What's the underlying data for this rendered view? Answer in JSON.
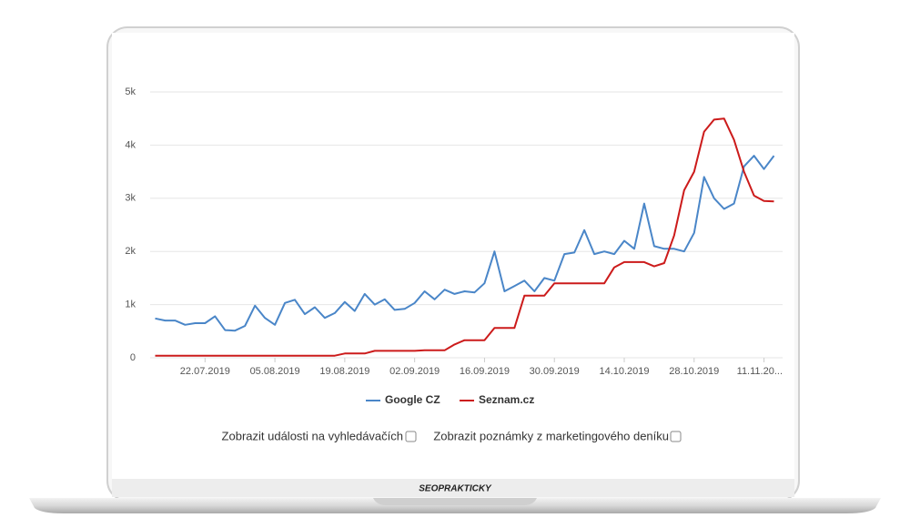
{
  "chart_data": {
    "type": "line",
    "x": [
      "12.07.2019",
      "14.07.2019",
      "16.07.2019",
      "18.07.2019",
      "20.07.2019",
      "22.07.2019",
      "24.07.2019",
      "26.07.2019",
      "28.07.2019",
      "30.07.2019",
      "01.08.2019",
      "03.08.2019",
      "05.08.2019",
      "07.08.2019",
      "09.08.2019",
      "11.08.2019",
      "13.08.2019",
      "15.08.2019",
      "17.08.2019",
      "19.08.2019",
      "21.08.2019",
      "23.08.2019",
      "25.08.2019",
      "27.08.2019",
      "29.08.2019",
      "31.08.2019",
      "02.09.2019",
      "04.09.2019",
      "06.09.2019",
      "08.09.2019",
      "10.09.2019",
      "12.09.2019",
      "14.09.2019",
      "16.09.2019",
      "18.09.2019",
      "20.09.2019",
      "22.09.2019",
      "24.09.2019",
      "26.09.2019",
      "28.09.2019",
      "30.09.2019",
      "02.10.2019",
      "04.10.2019",
      "06.10.2019",
      "08.10.2019",
      "10.10.2019",
      "12.10.2019",
      "14.10.2019",
      "16.10.2019",
      "18.10.2019",
      "20.10.2019",
      "22.10.2019",
      "24.10.2019",
      "26.10.2019",
      "28.10.2019",
      "30.10.2019",
      "01.11.2019",
      "03.11.2019",
      "05.11.2019",
      "07.11.2019",
      "09.11.2019",
      "11.11.2019",
      "13.11.2019"
    ],
    "series": [
      {
        "name": "Google CZ",
        "color": "#4a86c8",
        "values": [
          740,
          700,
          700,
          620,
          650,
          650,
          780,
          520,
          510,
          600,
          980,
          750,
          620,
          1030,
          1090,
          820,
          950,
          750,
          840,
          1050,
          880,
          1200,
          1000,
          1100,
          900,
          920,
          1030,
          1250,
          1100,
          1280,
          1200,
          1250,
          1230,
          1400,
          2000,
          1250,
          1350,
          1450,
          1250,
          1500,
          1450,
          1950,
          1980,
          2400,
          1950,
          2000,
          1950,
          2200,
          2050,
          2900,
          2100,
          2050,
          2050,
          2000,
          2350,
          3400,
          3000,
          2800,
          2900,
          3600,
          3800,
          3550,
          3800
        ]
      },
      {
        "name": "Seznam.cz",
        "color": "#cc1b1b",
        "values": [
          40,
          40,
          40,
          40,
          40,
          40,
          40,
          40,
          40,
          40,
          40,
          40,
          40,
          40,
          40,
          40,
          40,
          40,
          40,
          80,
          80,
          80,
          130,
          130,
          130,
          130,
          130,
          140,
          140,
          140,
          250,
          330,
          330,
          330,
          560,
          560,
          560,
          1170,
          1170,
          1170,
          1400,
          1400,
          1400,
          1400,
          1400,
          1400,
          1700,
          1800,
          1800,
          1800,
          1720,
          1780,
          2300,
          3150,
          3500,
          4250,
          4480,
          4500,
          4100,
          3500,
          3050,
          2950,
          2940
        ]
      }
    ],
    "xlim": [
      "11.07.2019",
      "14.11.2019"
    ],
    "xticks": [
      "22.07.2019",
      "05.08.2019",
      "19.08.2019",
      "02.09.2019",
      "16.09.2019",
      "30.09.2019",
      "14.10.2019",
      "28.10.2019",
      {
        "value": "11.11.2019",
        "label": "11.11.20..."
      }
    ],
    "ylim": [
      0,
      5000
    ],
    "yticks": [
      0,
      {
        "value": 1000,
        "label": "1k"
      },
      {
        "value": 2000,
        "label": "2k"
      },
      {
        "value": 3000,
        "label": "3k"
      },
      {
        "value": 4000,
        "label": "4k"
      },
      {
        "value": 5000,
        "label": "5k"
      }
    ],
    "grid": true,
    "legend": "bottom"
  },
  "controls": [
    "Zobrazit události na vyhledávačích",
    "Zobrazit poznámky z marketingového deníku"
  ],
  "brand": "SEOPRAKTICKY"
}
